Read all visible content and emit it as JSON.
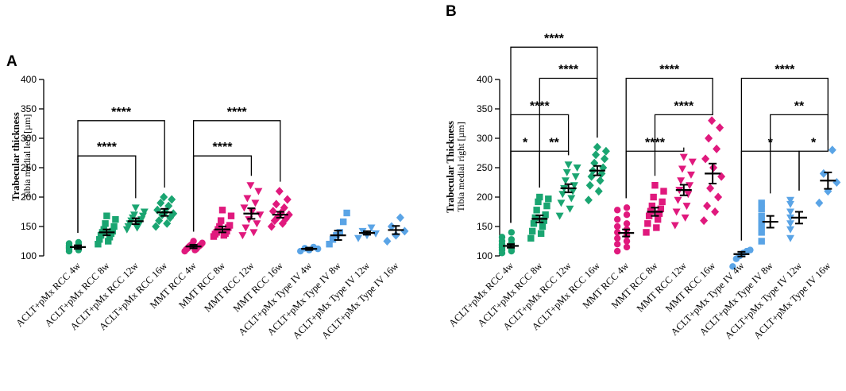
{
  "chart_data": [
    {
      "panel": "A",
      "type": "scatter",
      "ylabel_line1": "Trabecular thickness",
      "ylabel_line2": "Tibia medial left [µm]",
      "ylim": [
        100,
        400
      ],
      "yticks": [
        "100",
        "150",
        "200",
        "250",
        "300",
        "350",
        "400"
      ],
      "categories": [
        "ACLT+pMx RCC 4w",
        "ACLT+pMx RCC 8w",
        "ACLT+pMx RCC 12w",
        "ACLT+pMx RCC 16w",
        "MMT RCC 4w",
        "MMT RCC 8w",
        "MMT RCC 12w",
        "MMT RCC 16w",
        "ACLT+pMx Type IV 4w",
        "ACLT+pMx Type IV 8w",
        "ACLT+pMx Type IV 12w",
        "ACLT+pMx Type IV 16w"
      ],
      "groups": [
        {
          "name": "ACLT+pMx RCC 4w",
          "color": "#1aa571",
          "marker": "circle",
          "mean": 115,
          "sem": 3,
          "points": [
            108,
            110,
            111,
            112,
            113,
            114,
            114,
            115,
            116,
            117,
            118,
            120,
            121,
            123
          ]
        },
        {
          "name": "ACLT+pMx RCC 8w",
          "color": "#1aa571",
          "marker": "square",
          "mean": 140,
          "sem": 5,
          "points": [
            120,
            125,
            128,
            132,
            135,
            138,
            140,
            142,
            145,
            150,
            155,
            162,
            168
          ]
        },
        {
          "name": "ACLT+pMx RCC 12w",
          "color": "#1aa571",
          "marker": "triangle-down",
          "mean": 159,
          "sem": 5,
          "points": [
            145,
            148,
            150,
            152,
            155,
            158,
            160,
            162,
            165,
            168,
            170,
            175,
            182
          ]
        },
        {
          "name": "ACLT+pMx RCC 16w",
          "color": "#1aa571",
          "marker": "diamond",
          "mean": 174,
          "sem": 6,
          "points": [
            150,
            155,
            160,
            165,
            170,
            172,
            175,
            178,
            185,
            190,
            196,
            200
          ]
        },
        {
          "name": "MMT RCC 4w",
          "color": "#e0197d",
          "marker": "circle",
          "mean": 116,
          "sem": 3,
          "points": [
            108,
            110,
            111,
            112,
            113,
            115,
            116,
            117,
            118,
            119,
            120,
            122,
            125
          ]
        },
        {
          "name": "MMT RCC 8w",
          "color": "#e0197d",
          "marker": "square",
          "mean": 145,
          "sem": 5,
          "points": [
            133,
            135,
            137,
            138,
            140,
            142,
            145,
            148,
            150,
            152,
            160,
            168,
            178
          ]
        },
        {
          "name": "MMT RCC 12w",
          "color": "#e0197d",
          "marker": "triangle-down",
          "mean": 172,
          "sem": 9,
          "points": [
            135,
            140,
            148,
            155,
            162,
            170,
            175,
            182,
            190,
            198,
            210,
            220
          ]
        },
        {
          "name": "MMT RCC 16w",
          "color": "#e0197d",
          "marker": "diamond",
          "mean": 170,
          "sem": 5,
          "points": [
            150,
            155,
            160,
            163,
            166,
            170,
            173,
            176,
            182,
            188,
            196,
            210
          ]
        },
        {
          "name": "ACLT+pMx Type IV 4w",
          "color": "#5aa4e6",
          "marker": "circle",
          "mean": 112,
          "sem": 2,
          "points": [
            108,
            110,
            112,
            113,
            115
          ]
        },
        {
          "name": "ACLT+pMx Type IV 8w",
          "color": "#5aa4e6",
          "marker": "square",
          "mean": 135,
          "sem": 8,
          "points": [
            120,
            128,
            135,
            140,
            158,
            173
          ]
        },
        {
          "name": "ACLT+pMx Type IV 12w",
          "color": "#5aa4e6",
          "marker": "triangle-down",
          "mean": 139,
          "sem": 3,
          "points": [
            130,
            135,
            138,
            142,
            148
          ]
        },
        {
          "name": "ACLT+pMx Type IV 16w",
          "color": "#5aa4e6",
          "marker": "diamond",
          "mean": 144,
          "sem": 7,
          "points": [
            125,
            135,
            142,
            150,
            165
          ]
        }
      ],
      "brackets": [
        {
          "from": 0,
          "to": 2,
          "label": "****",
          "level": 270
        },
        {
          "from": 0,
          "to": 3,
          "label": "****",
          "level": 330
        },
        {
          "from": 4,
          "to": 6,
          "label": "****",
          "level": 270
        },
        {
          "from": 4,
          "to": 7,
          "label": "****",
          "level": 330
        }
      ]
    },
    {
      "panel": "B",
      "type": "scatter",
      "ylabel_line1": "Trabecular Thickness",
      "ylabel_line2": "Tibia medial right [µm]",
      "ylim": [
        100,
        400
      ],
      "yticks": [
        "100",
        "150",
        "200",
        "250",
        "300",
        "350",
        "400"
      ],
      "categories": [
        "ACLT+pMx RCC 4w",
        "ACLT+pMx RCC 8w",
        "ACLT+pMx RCC 12w",
        "ACLT+pMx RCC 16w",
        "MMT RCC 4w",
        "MMT RCC 8w",
        "MMT RCC 12w",
        "MMT RCC 16w",
        "ACLT+pMx Type IV 4w",
        "ACLT+pMx Type IV 8w",
        "ACLT+pMx Type IV 12w",
        "ACLT+pMx Type IV 16w"
      ],
      "groups": [
        {
          "name": "ACLT+pMx RCC 4w",
          "color": "#1aa571",
          "marker": "circle",
          "mean": 117,
          "sem": 3,
          "points": [
            105,
            108,
            110,
            112,
            114,
            115,
            117,
            118,
            120,
            122,
            125,
            128,
            132,
            140
          ]
        },
        {
          "name": "ACLT+pMx RCC 8w",
          "color": "#1aa571",
          "marker": "square",
          "mean": 163,
          "sem": 6,
          "points": [
            130,
            138,
            142,
            150,
            155,
            160,
            165,
            170,
            178,
            185,
            192,
            197,
            200
          ]
        },
        {
          "name": "ACLT+pMx RCC 12w",
          "color": "#1aa571",
          "marker": "triangle-down",
          "mean": 215,
          "sem": 7,
          "points": [
            168,
            180,
            190,
            198,
            205,
            210,
            215,
            220,
            228,
            235,
            242,
            250,
            255
          ]
        },
        {
          "name": "ACLT+pMx RCC 16w",
          "color": "#1aa571",
          "marker": "diamond",
          "mean": 245,
          "sem": 8,
          "points": [
            195,
            210,
            220,
            228,
            235,
            240,
            245,
            250,
            258,
            265,
            272,
            278,
            285
          ]
        },
        {
          "name": "MMT RCC 4w",
          "color": "#e0197d",
          "marker": "circle",
          "mean": 139,
          "sem": 6,
          "points": [
            108,
            115,
            120,
            125,
            130,
            135,
            140,
            145,
            150,
            155,
            162,
            170,
            178,
            182
          ]
        },
        {
          "name": "MMT RCC 8w",
          "color": "#e0197d",
          "marker": "square",
          "mean": 175,
          "sem": 7,
          "points": [
            140,
            148,
            155,
            162,
            168,
            172,
            176,
            180,
            185,
            192,
            200,
            210,
            220
          ]
        },
        {
          "name": "MMT RCC 12w",
          "color": "#e0197d",
          "marker": "triangle-down",
          "mean": 212,
          "sem": 9,
          "points": [
            152,
            165,
            175,
            185,
            195,
            205,
            212,
            220,
            228,
            238,
            248,
            260,
            268
          ]
        },
        {
          "name": "MMT RCC 16w",
          "color": "#e0197d",
          "marker": "diamond",
          "mean": 240,
          "sem": 17,
          "points": [
            160,
            175,
            185,
            200,
            215,
            235,
            250,
            265,
            282,
            300,
            318,
            330
          ]
        },
        {
          "name": "ACLT+pMx Type IV 4w",
          "color": "#5aa4e6",
          "marker": "circle",
          "mean": 103,
          "sem": 4,
          "points": [
            82,
            95,
            100,
            105,
            108,
            110
          ]
        },
        {
          "name": "ACLT+pMx Type IV 8w",
          "color": "#5aa4e6",
          "marker": "square",
          "mean": 158,
          "sem": 10,
          "points": [
            125,
            140,
            150,
            160,
            168,
            180,
            190
          ]
        },
        {
          "name": "ACLT+pMx Type IV 12w",
          "color": "#5aa4e6",
          "marker": "triangle-down",
          "mean": 165,
          "sem": 10,
          "points": [
            130,
            145,
            155,
            165,
            175,
            188,
            195
          ]
        },
        {
          "name": "ACLT+pMx Type IV 16w",
          "color": "#5aa4e6",
          "marker": "diamond",
          "mean": 228,
          "sem": 14,
          "points": [
            190,
            210,
            225,
            240,
            280
          ]
        }
      ],
      "brackets": [
        {
          "from": 0,
          "to": 1,
          "label": "*",
          "level": 278
        },
        {
          "from": 1,
          "to": 2,
          "label": "**",
          "level": 278
        },
        {
          "from": 0,
          "to": 2,
          "label": "****",
          "level": 340
        },
        {
          "from": 1,
          "to": 3,
          "label": "****",
          "level": 402
        },
        {
          "from": 0,
          "to": 3,
          "label": "****",
          "level": 455
        },
        {
          "from": 4,
          "to": 6,
          "label": "****",
          "level": 278
        },
        {
          "from": 5,
          "to": 7,
          "label": "****",
          "level": 340
        },
        {
          "from": 4,
          "to": 7,
          "label": "****",
          "level": 402
        },
        {
          "from": 8,
          "to": 10,
          "label": "*",
          "level": 278
        },
        {
          "from": 10,
          "to": 11,
          "label": "*",
          "level": 278
        },
        {
          "from": 9,
          "to": 11,
          "label": "**",
          "level": 340
        },
        {
          "from": 8,
          "to": 11,
          "label": "****",
          "level": 402
        }
      ]
    }
  ]
}
